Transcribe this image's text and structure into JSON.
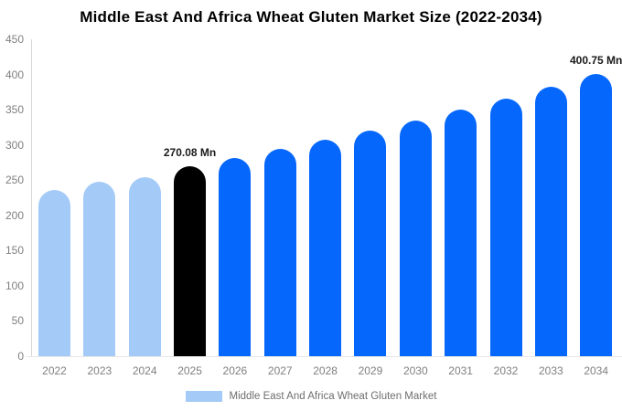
{
  "title": "Middle East And Africa Wheat Gluten Market Size (2022-2034)",
  "chart_data": {
    "type": "bar",
    "categories": [
      "2022",
      "2023",
      "2024",
      "2025",
      "2026",
      "2027",
      "2028",
      "2029",
      "2030",
      "2031",
      "2032",
      "2033",
      "2034"
    ],
    "values": [
      236,
      248,
      254,
      270.08,
      282,
      295,
      307,
      320,
      335,
      350,
      366,
      382,
      400.75
    ],
    "unit": "Mn",
    "title": "Middle East And Africa Wheat Gluten Market Size (2022-2034)",
    "xlabel": "",
    "ylabel": "",
    "ylim": [
      0,
      450
    ],
    "yticks": [
      0,
      50,
      100,
      150,
      200,
      250,
      300,
      350,
      400,
      450
    ],
    "grid": false,
    "legend_position": "bottom",
    "bar_colors": [
      "#A4CBF8",
      "#A4CBF8",
      "#A4CBF8",
      "#000000",
      "#0667FD",
      "#0667FD",
      "#0667FD",
      "#0667FD",
      "#0667FD",
      "#0667FD",
      "#0667FD",
      "#0667FD",
      "#0667FD"
    ],
    "annotations": [
      {
        "category": "2025",
        "text": "270.08 Mn"
      },
      {
        "category": "2034",
        "text": "400.75 Mn"
      }
    ],
    "legend": [
      {
        "label": "Middle East And Africa Wheat Gluten Market",
        "color": "#A4CBF8"
      }
    ]
  },
  "colors": {
    "background": "#ffffff",
    "title_text": "#000000",
    "tick_label": "#7f7f7f",
    "axis_line": "#d9d9d9",
    "baseline": "#e7e7e7",
    "legend_text": "#6e6e6e"
  }
}
